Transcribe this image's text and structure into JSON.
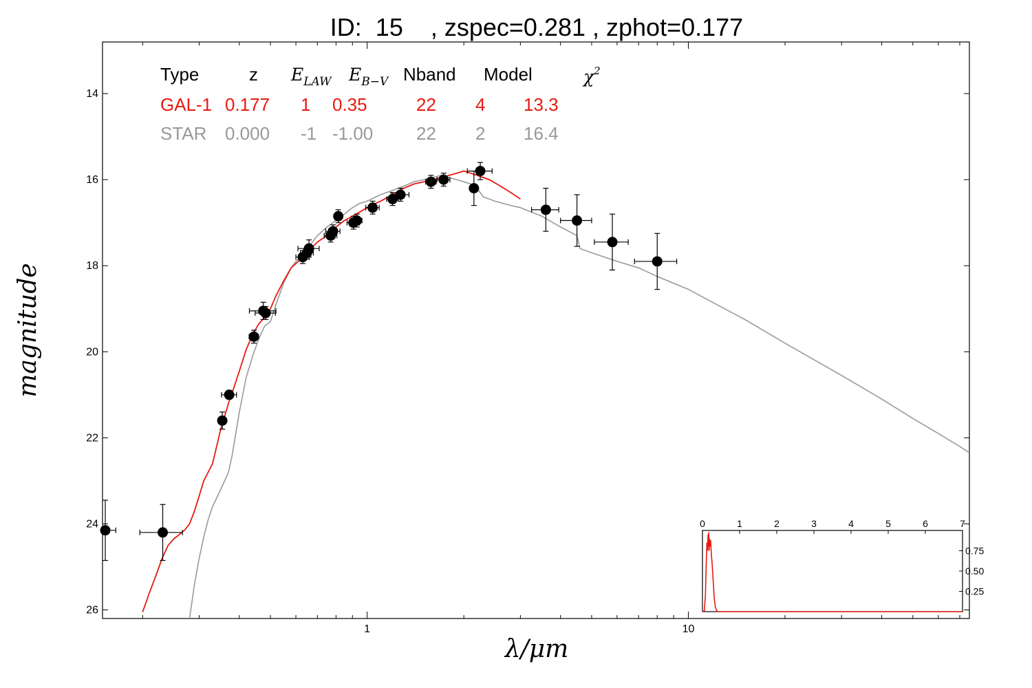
{
  "chart_data": {
    "type": "scatter",
    "title": "ID:  15    , zspec=0.281 , zphot=0.177",
    "xlabel": "λ/μm",
    "ylabel": "magnitude",
    "xscale": "log",
    "xlim": [
      0.15,
      75
    ],
    "ylim": [
      26.2,
      12.8
    ],
    "y_inverted": true,
    "x_ticks": [
      1,
      10
    ],
    "y_ticks": [
      14,
      16,
      18,
      20,
      22,
      24,
      26
    ],
    "legend": {
      "headers": [
        "Type",
        "z",
        "E_LAW",
        "E_B−V",
        "Nband",
        "Model",
        "χ²"
      ],
      "rows": [
        {
          "type": "GAL-1",
          "z": "0.177",
          "elaw": "1",
          "ebv": "0.35",
          "nband": "22",
          "model": "4",
          "chi2": "13.3",
          "color": "#e8190f"
        },
        {
          "type": "STAR",
          "z": "0.000",
          "elaw": "-1",
          "ebv": "-1.00",
          "nband": "22",
          "model": "2",
          "chi2": "16.4",
          "color": "#999999"
        }
      ]
    },
    "photometry": [
      {
        "x": 0.153,
        "y": 24.15,
        "xerr": 0.012,
        "yerr": 0.7
      },
      {
        "x": 0.231,
        "y": 24.2,
        "xerr": 0.035,
        "yerr": 0.65
      },
      {
        "x": 0.354,
        "y": 21.6,
        "xerr": 0.008,
        "yerr": 0.2
      },
      {
        "x": 0.372,
        "y": 21.0,
        "xerr": 0.02,
        "yerr": 0.1
      },
      {
        "x": 0.444,
        "y": 19.65,
        "xerr": 0.015,
        "yerr": 0.15
      },
      {
        "x": 0.475,
        "y": 19.05,
        "xerr": 0.045,
        "yerr": 0.2
      },
      {
        "x": 0.483,
        "y": 19.1,
        "xerr": 0.035,
        "yerr": 0.15
      },
      {
        "x": 0.63,
        "y": 17.8,
        "xerr": 0.03,
        "yerr": 0.15
      },
      {
        "x": 0.65,
        "y": 17.7,
        "xerr": 0.03,
        "yerr": 0.15
      },
      {
        "x": 0.659,
        "y": 17.6,
        "xerr": 0.05,
        "yerr": 0.2
      },
      {
        "x": 0.77,
        "y": 17.3,
        "xerr": 0.035,
        "yerr": 0.15
      },
      {
        "x": 0.783,
        "y": 17.2,
        "xerr": 0.04,
        "yerr": 0.15
      },
      {
        "x": 0.813,
        "y": 16.85,
        "xerr": 0.02,
        "yerr": 0.15
      },
      {
        "x": 0.906,
        "y": 17.0,
        "xerr": 0.04,
        "yerr": 0.15
      },
      {
        "x": 0.929,
        "y": 16.95,
        "xerr": 0.035,
        "yerr": 0.15
      },
      {
        "x": 1.04,
        "y": 16.65,
        "xerr": 0.05,
        "yerr": 0.15
      },
      {
        "x": 1.2,
        "y": 16.45,
        "xerr": 0.05,
        "yerr": 0.15
      },
      {
        "x": 1.27,
        "y": 16.35,
        "xerr": 0.08,
        "yerr": 0.15
      },
      {
        "x": 1.58,
        "y": 16.05,
        "xerr": 0.06,
        "yerr": 0.15
      },
      {
        "x": 1.73,
        "y": 16.0,
        "xerr": 0.08,
        "yerr": 0.15
      },
      {
        "x": 2.15,
        "y": 16.2,
        "xerr": 0.04,
        "yerr": 0.4
      },
      {
        "x": 2.25,
        "y": 15.8,
        "xerr": 0.2,
        "yerr": 0.2
      },
      {
        "x": 3.6,
        "y": 16.7,
        "xerr": 0.35,
        "yerr": 0.5
      },
      {
        "x": 4.5,
        "y": 16.95,
        "xerr": 0.5,
        "yerr": 0.6
      },
      {
        "x": 5.8,
        "y": 17.45,
        "xerr": 0.7,
        "yerr": 0.65
      },
      {
        "x": 8.0,
        "y": 17.9,
        "xerr": 1.2,
        "yerr": 0.65
      }
    ],
    "galaxy_model": {
      "color": "#e8190f",
      "x": [
        0.2,
        0.21,
        0.22,
        0.23,
        0.24,
        0.25,
        0.26,
        0.27,
        0.28,
        0.29,
        0.3,
        0.31,
        0.32,
        0.33,
        0.34,
        0.35,
        0.36,
        0.37,
        0.38,
        0.39,
        0.4,
        0.42,
        0.44,
        0.46,
        0.48,
        0.5,
        0.52,
        0.55,
        0.58,
        0.6,
        0.63,
        0.66,
        0.7,
        0.75,
        0.8,
        0.85,
        0.9,
        0.95,
        1.0,
        1.1,
        1.2,
        1.3,
        1.4,
        1.5,
        1.6,
        1.7,
        1.8,
        1.9,
        2.0,
        2.1,
        2.2,
        2.4,
        2.6,
        2.8,
        3.0
      ],
      "y": [
        26.05,
        25.6,
        25.2,
        24.8,
        24.5,
        24.35,
        24.25,
        24.15,
        24.0,
        23.7,
        23.35,
        23.0,
        22.8,
        22.6,
        22.2,
        21.8,
        21.5,
        21.2,
        20.95,
        20.7,
        20.45,
        19.95,
        19.6,
        19.35,
        19.2,
        19.0,
        18.7,
        18.35,
        18.05,
        17.95,
        17.8,
        17.65,
        17.45,
        17.3,
        17.1,
        16.95,
        16.85,
        16.75,
        16.65,
        16.5,
        16.35,
        16.2,
        16.1,
        16.05,
        16.0,
        15.95,
        15.9,
        15.85,
        15.8,
        15.85,
        15.9,
        16.0,
        16.15,
        16.3,
        16.45
      ]
    },
    "star_model": {
      "color": "#999999",
      "x": [
        0.28,
        0.29,
        0.3,
        0.31,
        0.32,
        0.33,
        0.34,
        0.35,
        0.36,
        0.37,
        0.38,
        0.39,
        0.4,
        0.42,
        0.44,
        0.46,
        0.48,
        0.5,
        0.52,
        0.55,
        0.58,
        0.6,
        0.63,
        0.66,
        0.7,
        0.75,
        0.8,
        0.85,
        0.9,
        0.95,
        1.0,
        1.1,
        1.2,
        1.3,
        1.4,
        1.5,
        1.6,
        1.7,
        1.8,
        1.9,
        2.0,
        2.1,
        2.2,
        2.3,
        2.5,
        2.8,
        3.0,
        3.5,
        4.0,
        4.5,
        4.6,
        5.0,
        6.0,
        7.0,
        8.0,
        10.0,
        15.0,
        20.0,
        30.0,
        40.0,
        50.0,
        60.0,
        70.0,
        75.0
      ],
      "y": [
        26.2,
        25.4,
        24.8,
        24.3,
        23.9,
        23.6,
        23.4,
        23.2,
        23.0,
        22.8,
        22.4,
        21.9,
        21.4,
        20.6,
        20.1,
        19.7,
        19.4,
        19.3,
        18.9,
        18.4,
        18.05,
        17.9,
        17.75,
        17.55,
        17.3,
        17.1,
        16.95,
        16.8,
        16.65,
        16.55,
        16.5,
        16.35,
        16.25,
        16.15,
        16.05,
        16.0,
        15.95,
        15.9,
        15.95,
        16.0,
        16.05,
        16.1,
        16.2,
        16.4,
        16.5,
        16.6,
        16.65,
        16.85,
        17.1,
        17.3,
        17.6,
        17.7,
        17.9,
        18.05,
        18.25,
        18.55,
        19.25,
        19.8,
        20.55,
        21.1,
        21.55,
        21.9,
        22.2,
        22.35
      ]
    },
    "inset": {
      "type": "line",
      "xlim": [
        0,
        7
      ],
      "ylim": [
        0,
        1
      ],
      "x_ticks": [
        0,
        1,
        2,
        3,
        4,
        5,
        6,
        7
      ],
      "y_ticks": [
        0.25,
        0.5,
        0.75
      ],
      "y_tick_labels": [
        "0.25",
        "0.50",
        "0.75"
      ],
      "color": "#e8190f",
      "x": [
        0.0,
        0.05,
        0.08,
        0.1,
        0.12,
        0.14,
        0.15,
        0.16,
        0.17,
        0.18,
        0.19,
        0.2,
        0.21,
        0.22,
        0.24,
        0.26,
        0.28,
        0.3,
        0.32,
        0.35,
        0.4,
        1.0,
        7.0
      ],
      "y": [
        0.0,
        0.01,
        0.2,
        0.55,
        0.85,
        0.75,
        0.95,
        0.8,
        0.98,
        0.75,
        0.9,
        0.85,
        0.8,
        0.88,
        0.7,
        0.6,
        0.45,
        0.3,
        0.15,
        0.05,
        0.0,
        0.0,
        0.0
      ]
    }
  }
}
